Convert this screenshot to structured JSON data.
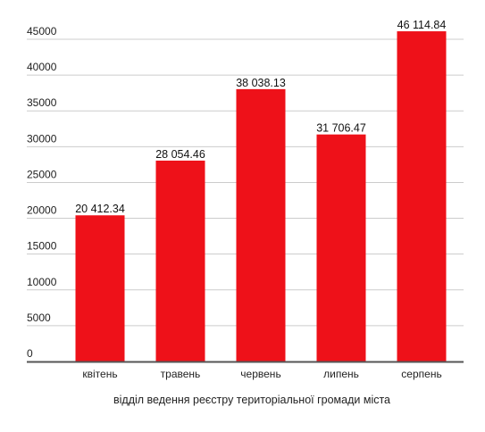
{
  "chart_data": {
    "type": "bar",
    "categories": [
      "квітень",
      "травень",
      "червень",
      "липень",
      "серпень"
    ],
    "values": [
      20412.34,
      28054.46,
      38038.13,
      31706.47,
      46114.84
    ],
    "data_labels": [
      "20 412.34",
      "28 054.46",
      "38 038.13",
      "31 706.47",
      "46 114.84"
    ],
    "xlabel": "відділ ведення реєстру територіальної громади міста",
    "ylim": [
      0,
      45000
    ],
    "yticks": [
      0,
      5000,
      10000,
      15000,
      20000,
      25000,
      30000,
      35000,
      40000,
      45000
    ],
    "grid": true,
    "bar_color": "#ee1119",
    "grid_color": "#cccccc",
    "axis_color": "#555555"
  }
}
